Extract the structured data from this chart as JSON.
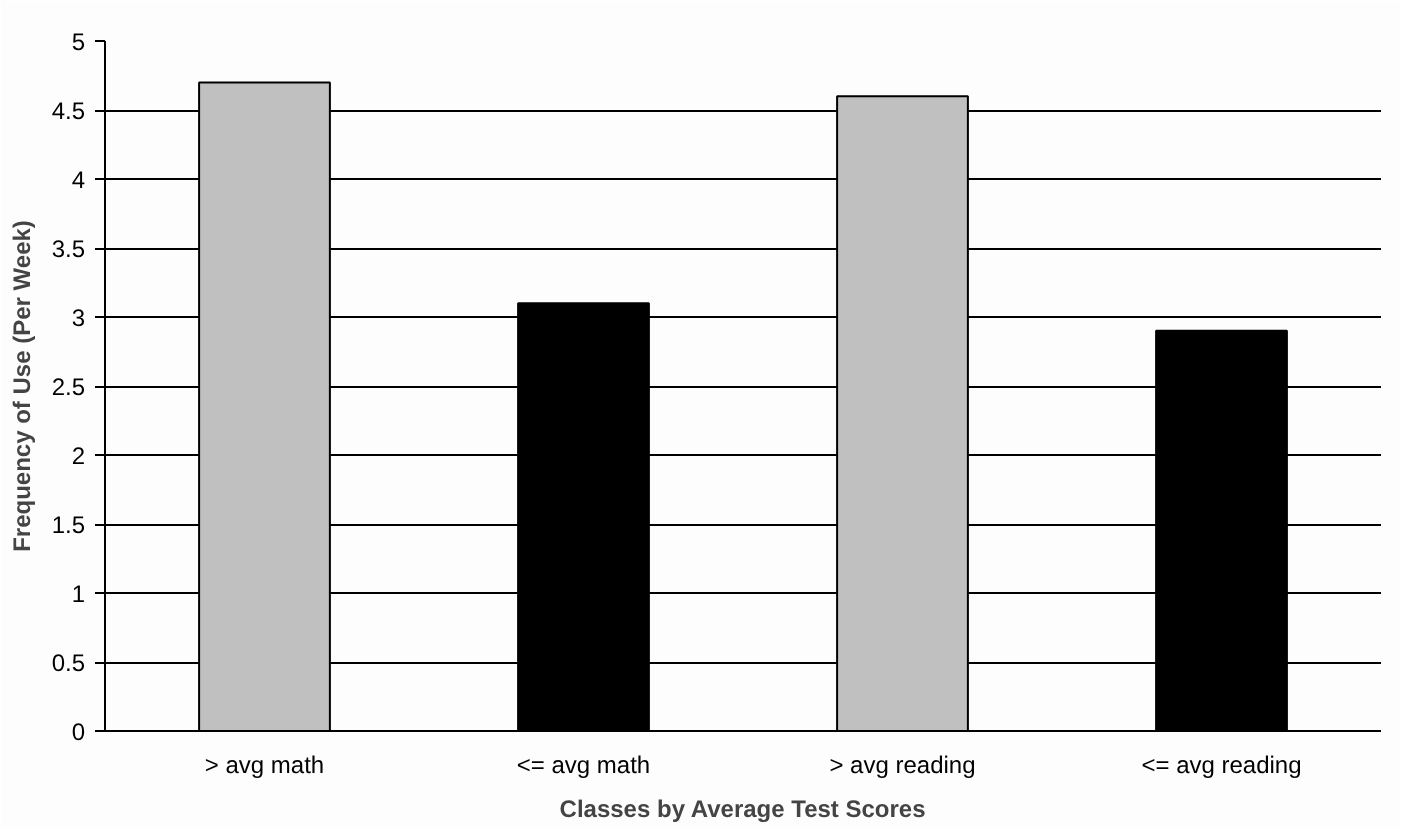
{
  "chart_data": {
    "type": "bar",
    "xlabel": "Classes by Average Test Scores",
    "ylabel": "Frequency of Use (Per Week)",
    "categories": [
      "> avg math",
      "<= avg math",
      "> avg reading",
      "<= avg reading"
    ],
    "values": [
      4.7,
      3.1,
      4.6,
      2.9
    ],
    "colors": [
      "#c0c0c0",
      "#000000",
      "#c0c0c0",
      "#000000"
    ],
    "ylim": [
      0,
      5
    ],
    "yticks": [
      0,
      0.5,
      1,
      1.5,
      2,
      2.5,
      3,
      3.5,
      4,
      4.5,
      5
    ],
    "grid": "y"
  }
}
